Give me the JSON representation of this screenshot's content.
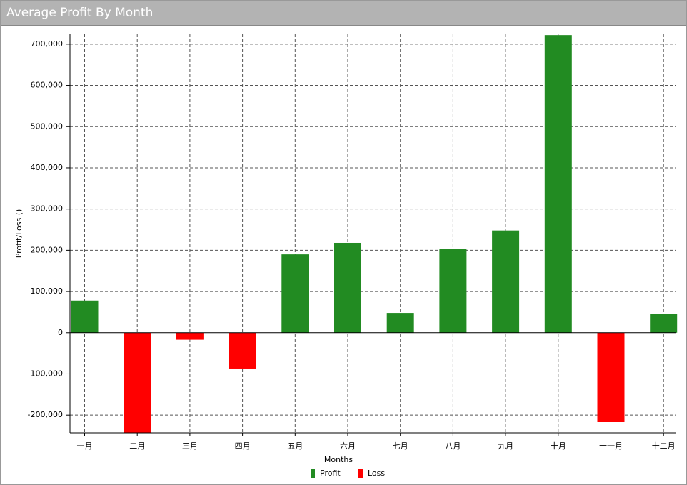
{
  "chart_data": {
    "type": "bar",
    "title": "Average Profit By Month",
    "x_label": "Months",
    "y_label": "Profit/Loss ()",
    "categories": [
      "一月",
      "二月",
      "三月",
      "四月",
      "五月",
      "六月",
      "七月",
      "八月",
      "九月",
      "十月",
      "十一月",
      "十二月"
    ],
    "series": [
      {
        "name": "Profit",
        "color": "#228b22",
        "values": [
          78000,
          null,
          null,
          null,
          190000,
          218000,
          48000,
          204000,
          248000,
          722000,
          null,
          45000
        ]
      },
      {
        "name": "Loss",
        "color": "#ff0000",
        "values": [
          null,
          -243000,
          -17000,
          -87000,
          null,
          null,
          null,
          null,
          null,
          null,
          -217000,
          null
        ]
      }
    ],
    "ylim": [
      -243000,
      724000
    ],
    "yticks": [
      {
        "value": -200000,
        "label": "-200,000"
      },
      {
        "value": -100000,
        "label": "-100,000"
      },
      0,
      {
        "value": 100000,
        "label": "100,000"
      },
      {
        "value": 200000,
        "label": "200,000"
      },
      {
        "value": 300000,
        "label": "300,000"
      },
      {
        "value": 400000,
        "label": "400,000"
      },
      {
        "value": 500000,
        "label": "500,000"
      },
      {
        "value": 600000,
        "label": "600,000"
      },
      {
        "value": 700000,
        "label": "700,000"
      }
    ],
    "grid": true
  }
}
